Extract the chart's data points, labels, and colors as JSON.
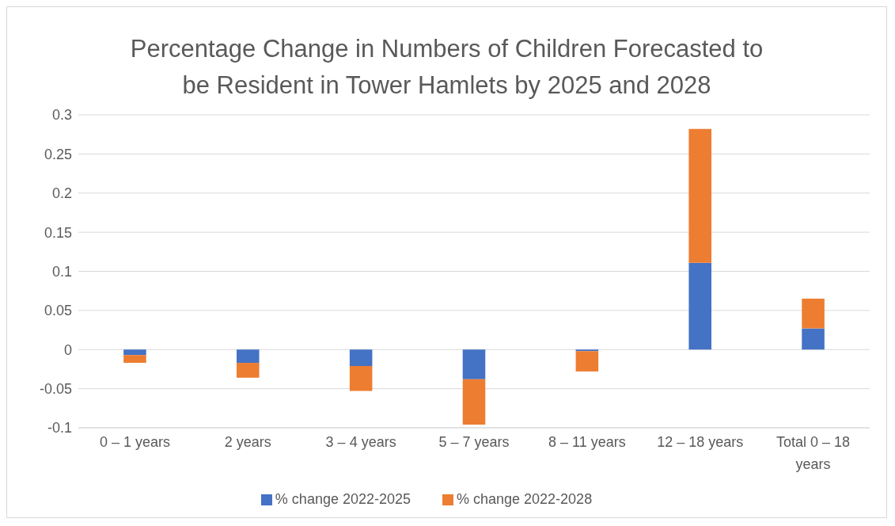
{
  "chart_data": {
    "type": "bar",
    "title": "Percentage Change in Numbers of Children Forecasted to be Resident in Tower Hamlets by 2025 and 2028",
    "categories": [
      "0 – 1 years",
      "2 years",
      "3 – 4 years",
      "5 – 7 years",
      "8 – 11 years",
      "12 – 18 years",
      "Total 0 – 18 years"
    ],
    "series": [
      {
        "name": "% change 2022-2025",
        "color": "#4472c4",
        "values": [
          -0.007,
          -0.017,
          -0.021,
          -0.038,
          -0.002,
          0.111,
          0.027
        ]
      },
      {
        "name": "% change 2022-2028",
        "color": "#ed7d31",
        "values": [
          -0.01,
          -0.019,
          -0.032,
          -0.058,
          -0.026,
          0.171,
          0.038
        ]
      }
    ],
    "stacked": true,
    "ylim": [
      -0.1,
      0.3
    ],
    "yticks": [
      -0.1,
      -0.05,
      0,
      0.05,
      0.1,
      0.15,
      0.2,
      0.25,
      0.3
    ],
    "grid": "y",
    "legend": "bottom"
  }
}
